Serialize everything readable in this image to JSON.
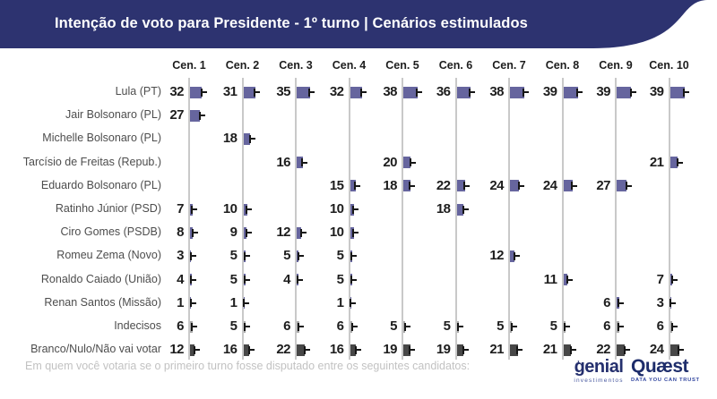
{
  "header": {
    "title": "Intenção de voto para Presidente - 1º turno | Cenários estimulados",
    "bg_color": "#2d3370",
    "text_color": "#ffffff"
  },
  "chart_data": {
    "type": "bar",
    "orientation": "horizontal",
    "unit": "%",
    "note": "small-multiple horizontal bars per scenario; number printed left of each column axis",
    "xlim_per_column": [
      0,
      45
    ],
    "scenarios": [
      "Cen. 1",
      "Cen. 2",
      "Cen. 3",
      "Cen. 4",
      "Cen. 5",
      "Cen. 6",
      "Cen. 7",
      "Cen. 8",
      "Cen. 9",
      "Cen. 10"
    ],
    "rows": [
      {
        "label": "Lula (PT)",
        "color": "#66659e",
        "values": [
          32,
          31,
          35,
          32,
          38,
          36,
          38,
          39,
          39,
          39
        ]
      },
      {
        "label": "Jair Bolsonaro (PL)",
        "color": "#66659e",
        "values": [
          27,
          null,
          null,
          null,
          null,
          null,
          null,
          null,
          null,
          null
        ]
      },
      {
        "label": "Michelle Bolsonaro (PL)",
        "color": "#66659e",
        "values": [
          null,
          18,
          null,
          null,
          null,
          null,
          null,
          null,
          null,
          null
        ]
      },
      {
        "label": "Tarcísio de Freitas (Repub.)",
        "color": "#66659e",
        "values": [
          null,
          null,
          16,
          null,
          20,
          null,
          null,
          null,
          null,
          21
        ]
      },
      {
        "label": "Eduardo Bolsonaro (PL)",
        "color": "#66659e",
        "values": [
          null,
          null,
          null,
          15,
          18,
          22,
          24,
          24,
          27,
          null
        ]
      },
      {
        "label": "Ratinho Júnior (PSD)",
        "color": "#66659e",
        "values": [
          7,
          10,
          null,
          10,
          null,
          18,
          null,
          null,
          null,
          null
        ]
      },
      {
        "label": "Ciro Gomes (PSDB)",
        "color": "#66659e",
        "values": [
          8,
          9,
          12,
          10,
          null,
          null,
          null,
          null,
          null,
          null
        ]
      },
      {
        "label": "Romeu Zema (Novo)",
        "color": "#66659e",
        "values": [
          3,
          5,
          5,
          5,
          null,
          null,
          12,
          null,
          null,
          null
        ]
      },
      {
        "label": "Ronaldo Caiado (União)",
        "color": "#66659e",
        "values": [
          4,
          5,
          4,
          5,
          null,
          null,
          null,
          11,
          null,
          7
        ]
      },
      {
        "label": "Renan Santos (Missão)",
        "color": "#66659e",
        "values": [
          1,
          1,
          null,
          1,
          null,
          null,
          null,
          null,
          6,
          3
        ]
      },
      {
        "label": "Indecisos",
        "color": "#a9a9a9",
        "values": [
          6,
          5,
          6,
          6,
          5,
          5,
          5,
          5,
          6,
          6
        ]
      },
      {
        "label": "Branco/Nulo/Não vai votar",
        "color": "#474747",
        "values": [
          12,
          16,
          22,
          16,
          19,
          19,
          21,
          21,
          22,
          24
        ]
      }
    ],
    "axis_color": "#c9c9c9",
    "whisker_color": "#161616",
    "legend_position": "none",
    "grid": "vertical-baselines-only"
  },
  "footer": {
    "question": "Em quem você votaria se o primeiro turno fosse disputado entre os seguintes candidatos:",
    "logos": {
      "genial": {
        "name": "genial",
        "sub": "investimentos"
      },
      "quaest": {
        "name": "Quæst",
        "sub": "DATA YOU CAN TRUST"
      }
    }
  }
}
